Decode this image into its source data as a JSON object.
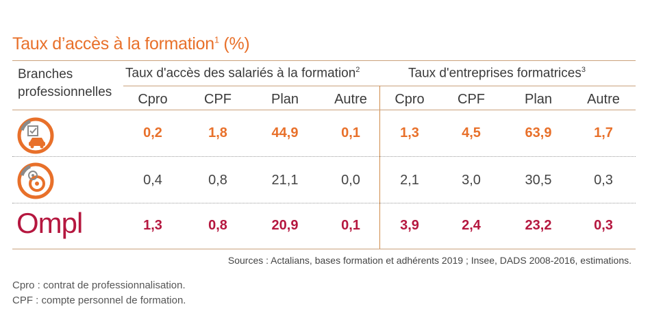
{
  "title": {
    "text": "Taux d’accès à la formation",
    "sup": "1",
    "suffix": " (%)"
  },
  "header": {
    "branches_label_1": "Branches",
    "branches_label_2": "professionnelles",
    "group1": {
      "label": "Taux d'accès des salariés à la formation",
      "sup": "2"
    },
    "group2": {
      "label": "Taux d'entreprises formatrices",
      "sup": "3"
    },
    "columns": [
      "Cpro",
      "CPF",
      "Plan",
      "Autre",
      "Cpro",
      "CPF",
      "Plan",
      "Autre"
    ]
  },
  "rows": [
    {
      "icon": "automobile-services-icon",
      "color": "#e8702a",
      "values": [
        "0,2",
        "1,8",
        "44,9",
        "0,1",
        "1,3",
        "4,5",
        "63,9",
        "1,7"
      ]
    },
    {
      "icon": "tire-services-icon",
      "color": "#e8702a",
      "values": [
        "0,4",
        "0,8",
        "21,1",
        "0,0",
        "2,1",
        "3,0",
        "30,5",
        "0,3"
      ]
    },
    {
      "icon": "ompl-logo",
      "logo_text": "Ompl",
      "color": "#b5173f",
      "values": [
        "1,3",
        "0,8",
        "20,9",
        "0,1",
        "3,9",
        "2,4",
        "23,2",
        "0,3"
      ]
    }
  ],
  "sources": "Sources : Actalians, bases formation et adhérents 2019 ; Insee, DADS 2008-2016, estimations.",
  "notes": [
    "Cpro : contrat de professionnalisation.",
    "CPF : compte personnel de formation."
  ],
  "colors": {
    "accent": "#e8702a",
    "ompl": "#b5173f",
    "text": "#3a3a3a"
  }
}
